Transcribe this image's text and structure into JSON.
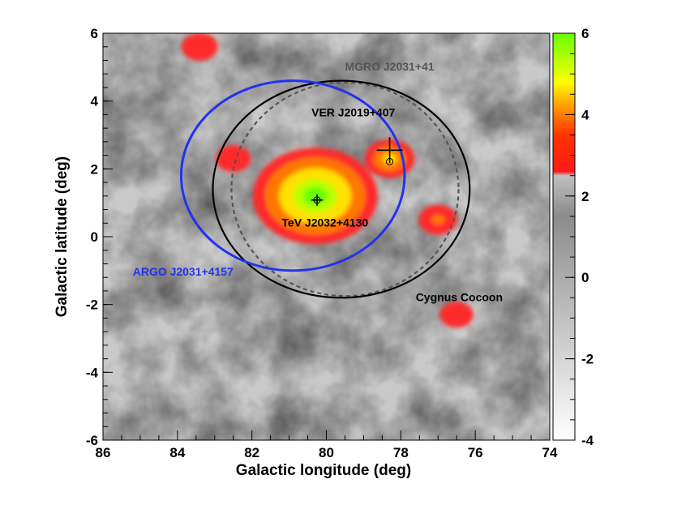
{
  "chart_data": {
    "type": "heatmap",
    "title": "",
    "xlabel": "Galactic longitude (deg)",
    "ylabel": "Galactic latitude (deg)",
    "xlim": [
      86,
      74
    ],
    "ylim": [
      -6,
      6
    ],
    "x_ticks": [
      "86",
      "84",
      "82",
      "80",
      "78",
      "76",
      "74"
    ],
    "y_ticks": [
      "-6",
      "-4",
      "-2",
      "0",
      "2",
      "4",
      "6"
    ],
    "colorbar": {
      "range": [
        -4,
        6
      ],
      "ticks": [
        "-4",
        "-2",
        "0",
        "2",
        "4",
        "6"
      ],
      "colors": [
        "#ffffff",
        "#8c8c8c",
        "#ff0000",
        "#ffff00",
        "#66ff00"
      ]
    },
    "hotspots": [
      {
        "l": 80.3,
        "b": 1.2,
        "peak": 5.8
      },
      {
        "l": 78.3,
        "b": 2.3,
        "peak": 4.5
      },
      {
        "l": 77.0,
        "b": 0.5,
        "peak": 3.6
      },
      {
        "l": 83.4,
        "b": 5.6,
        "peak": 3.4
      },
      {
        "l": 76.5,
        "b": -2.3,
        "peak": 3.2
      },
      {
        "l": 82.5,
        "b": 2.3,
        "peak": 3.3
      }
    ],
    "sources": [
      {
        "name": "MGRO J2031+41",
        "shape": "ellipse",
        "l": 79.5,
        "b": 1.4,
        "rl": 3.05,
        "rb": 3.15,
        "style": "dashed",
        "color": "#555555"
      },
      {
        "name": "Cygnus Cocoon",
        "shape": "ellipse",
        "l": 79.6,
        "b": 1.4,
        "rl": 3.45,
        "rb": 3.2,
        "style": "solid",
        "color": "#000000"
      },
      {
        "name": "ARGO J2031+4157",
        "shape": "ellipse",
        "l": 80.9,
        "b": 1.8,
        "rl": 3.0,
        "rb": 2.8,
        "style": "solid",
        "color": "#2233ee"
      },
      {
        "name": "VER J2019+407",
        "shape": "cross",
        "l": 78.3,
        "b": 2.55,
        "style": "solid",
        "color": "#000000"
      },
      {
        "name": "TeV J2032+4130",
        "shape": "cross",
        "l": 80.25,
        "b": 1.08,
        "style": "solid",
        "color": "#000000"
      }
    ],
    "annotations": [
      {
        "text": "MGRO J2031+41",
        "l": 79.5,
        "b": 4.9,
        "color": "#555555"
      },
      {
        "text": "VER J2019+407",
        "l": 80.4,
        "b": 3.55,
        "color": "#000000"
      },
      {
        "text": "TeV J2032+4130",
        "l": 81.2,
        "b": 0.3,
        "color": "#000000"
      },
      {
        "text": "ARGO J2031+4157",
        "l": 85.2,
        "b": -1.15,
        "color": "#2233ee"
      },
      {
        "text": "Cygnus Cocoon",
        "l": 77.6,
        "b": -1.9,
        "color": "#000000"
      }
    ]
  }
}
